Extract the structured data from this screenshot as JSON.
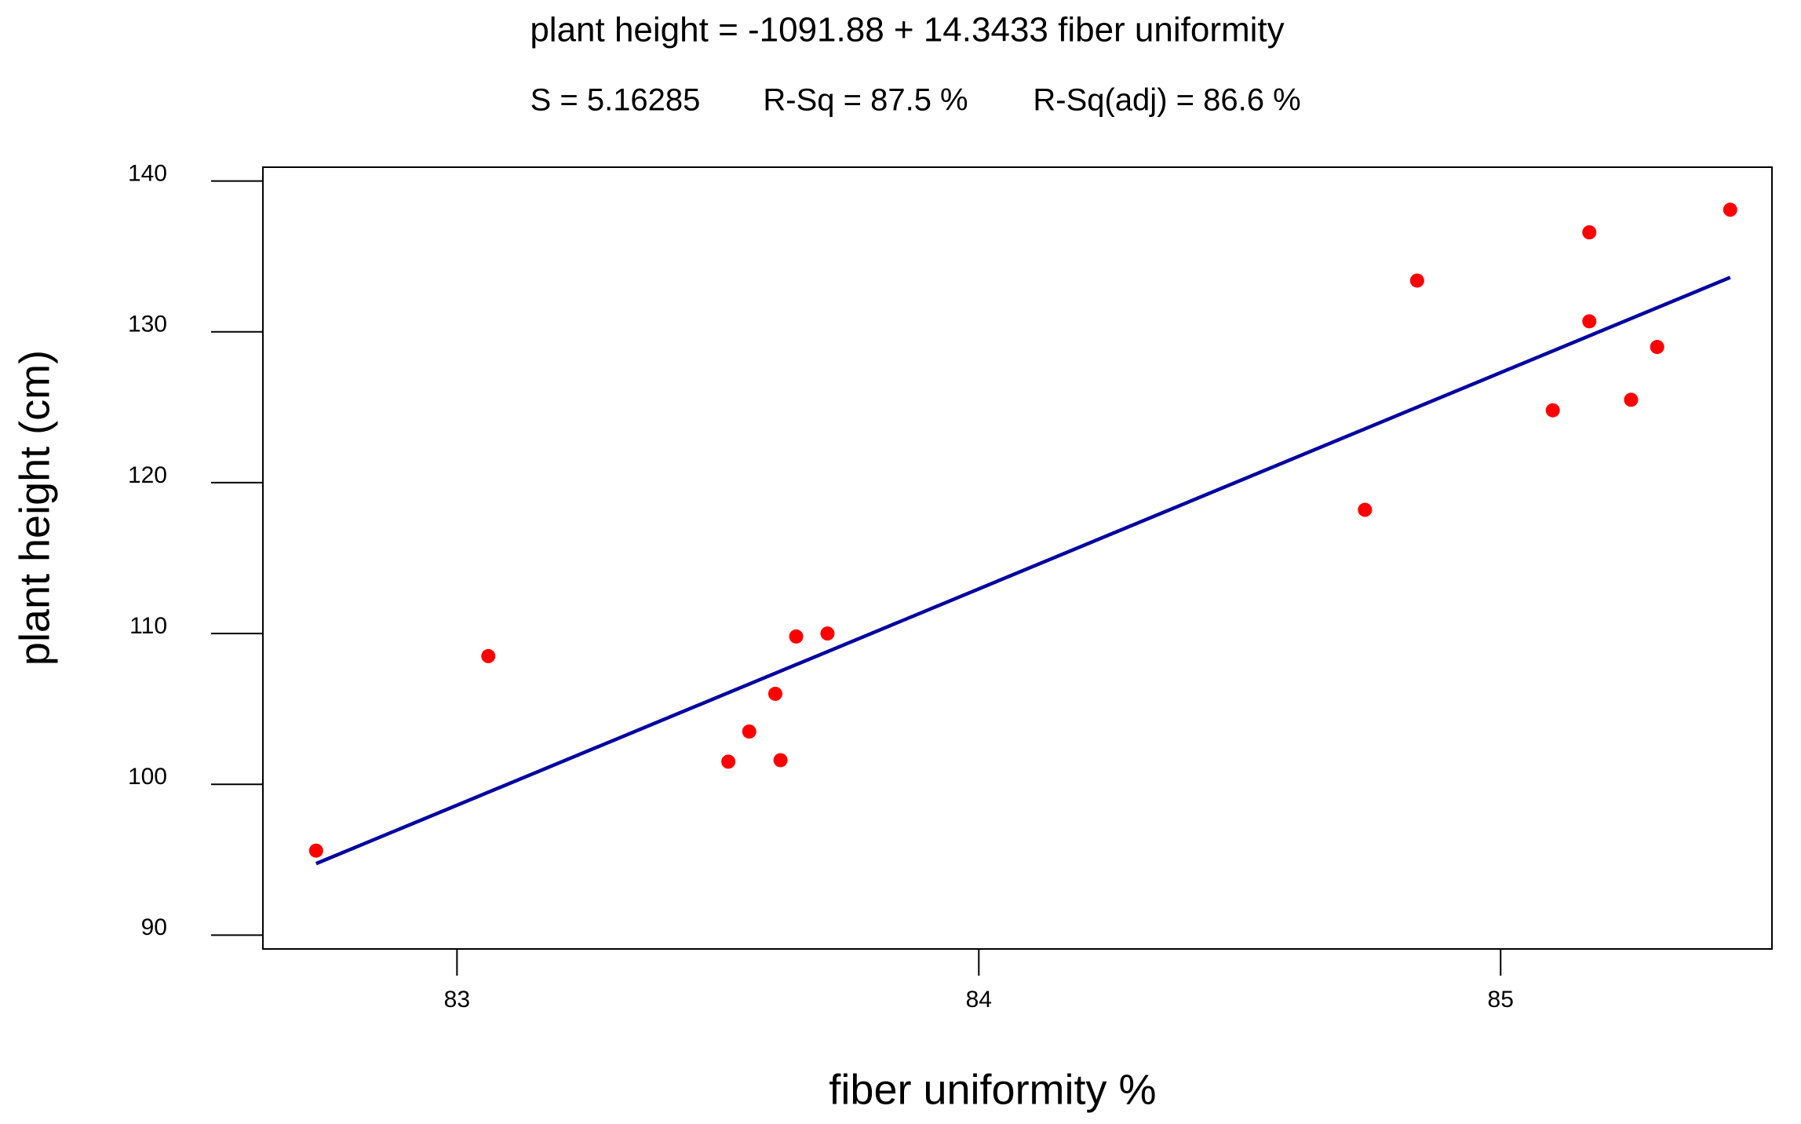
{
  "chart_data": {
    "type": "scatter",
    "title": "plant height = -1091.88 + 14.3433 fiber uniformity",
    "subtitle": [
      "S = 5.16285",
      "R-Sq = 87.5 %",
      "R-Sq(adj) = 86.6 %"
    ],
    "x_label": "fiber uniformity %",
    "y_label": "plant height (cm)",
    "x": [
      82.73,
      83.06,
      83.52,
      83.56,
      83.61,
      83.62,
      83.65,
      83.71,
      84.74,
      84.84,
      85.1,
      85.17,
      85.17,
      85.25,
      85.3,
      85.44
    ],
    "series": [
      {
        "color": "#ff0000",
        "values": [
          95.6,
          108.5,
          101.5,
          103.5,
          106.0,
          101.6,
          109.8,
          110.0,
          118.2,
          133.4,
          124.8,
          136.6,
          130.7,
          125.5,
          129.0,
          138.1
        ]
      }
    ],
    "fit_line": {
      "color": "#0000a0",
      "x": [
        82.73,
        85.44
      ],
      "y": [
        94.74,
        133.61
      ]
    },
    "xlim": [
      82.628,
      85.52
    ],
    "ylim": [
      89.08,
      140.92
    ],
    "xticks": [
      83,
      84,
      85
    ],
    "yticks": [
      90,
      100,
      110,
      120,
      130,
      140
    ]
  }
}
